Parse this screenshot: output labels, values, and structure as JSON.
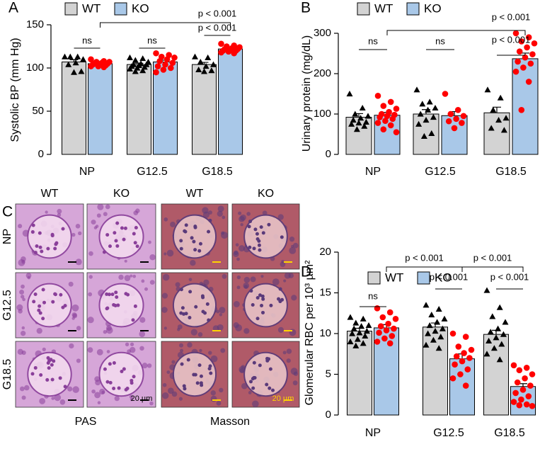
{
  "chart_data": [
    {
      "type": "bar",
      "panel_label": "A",
      "ylabel": "Systolic BP (mm Hg)",
      "categories": [
        "NP",
        "G12.5",
        "G18.5"
      ],
      "ylim": [
        0,
        150
      ],
      "yticks": [
        0,
        50,
        100,
        150
      ],
      "series": [
        {
          "name": "WT",
          "color": "#d3d3d3",
          "marker": "triangle",
          "marker_color": "#000000",
          "values": [
            107,
            104,
            104
          ],
          "errors": [
            2.5,
            1.5,
            2.5
          ],
          "points": [
            [
              113,
              113,
              113,
              110,
              106,
              104,
              96,
              95
            ],
            [
              112,
              111,
              109,
              107,
              105,
              104,
              104,
              103,
              102,
              101,
              100,
              99,
              97,
              96
            ],
            [
              113,
              112,
              107,
              104,
              102,
              98,
              97,
              96
            ]
          ]
        },
        {
          "name": "KO",
          "color": "#a9c8e8",
          "marker": "circle",
          "marker_color": "#ff0000",
          "values": [
            105,
            107,
            122
          ],
          "errors": [
            1,
            2,
            1
          ],
          "points": [
            [
              110,
              108,
              107,
              107,
              106,
              105,
              105,
              104,
              104,
              103,
              102,
              102,
              101
            ],
            [
              117,
              115,
              113,
              112,
              110,
              108,
              106,
              104,
              102,
              100,
              98,
              95
            ],
            [
              128,
              126,
              125,
              124,
              123,
              122,
              122,
              121,
              120,
              120,
              119,
              118,
              117
            ]
          ]
        }
      ],
      "annotations": [
        "ns",
        "ns",
        "p < 0.001",
        "p < 0.001"
      ]
    },
    {
      "type": "bar",
      "panel_label": "B",
      "ylabel": "Urinary protein (mg/dL)",
      "categories": [
        "NP",
        "G12.5",
        "G18.5"
      ],
      "ylim": [
        0,
        300
      ],
      "yticks": [
        0,
        100,
        200,
        300
      ],
      "series": [
        {
          "name": "WT",
          "color": "#d3d3d3",
          "marker": "triangle",
          "marker_color": "#000000",
          "values": [
            92,
            100,
            103
          ],
          "errors": [
            9,
            11,
            14
          ],
          "points": [
            [
              150,
              115,
              100,
              95,
              90,
              85,
              80,
              78,
              75,
              70,
              62
            ],
            [
              160,
              130,
              125,
              115,
              110,
              100,
              92,
              85,
              75,
              52,
              45
            ],
            [
              160,
              140,
              110,
              90,
              85,
              65,
              60
            ]
          ]
        },
        {
          "name": "KO",
          "color": "#a9c8e8",
          "marker": "circle",
          "marker_color": "#ff0000",
          "values": [
            97,
            96,
            237
          ],
          "errors": [
            7,
            10,
            14
          ],
          "points": [
            [
              145,
              130,
              120,
              113,
              105,
              100,
              98,
              95,
              92,
              88,
              83,
              78,
              72,
              62,
              55
            ],
            [
              150,
              110,
              100,
              95,
              88,
              82,
              78,
              65
            ],
            [
              300,
              290,
              280,
              275,
              265,
              255,
              248,
              240,
              230,
              225,
              215,
              205,
              180,
              110
            ]
          ]
        }
      ],
      "annotations": [
        "ns",
        "ns",
        "p < 0.001",
        "p < 0.001"
      ]
    },
    {
      "type": "bar",
      "panel_label": "D",
      "ylabel": "Glomerular RBC per 10³ µm²",
      "categories": [
        "NP",
        "G12.5",
        "G18.5"
      ],
      "ylim": [
        0,
        20
      ],
      "yticks": [
        0,
        5,
        10,
        15,
        20
      ],
      "series": [
        {
          "name": "WT",
          "color": "#d3d3d3",
          "marker": "triangle",
          "marker_color": "#000000",
          "values": [
            10.3,
            10.8,
            9.9
          ],
          "errors": [
            0.35,
            0.5,
            0.5
          ],
          "points": [
            [
              12,
              11.8,
              11.3,
              11,
              10.9,
              10.6,
              10.3,
              10.1,
              10,
              9.7,
              9.3,
              9,
              8.8,
              8.5
            ],
            [
              13.5,
              13,
              12.3,
              11.8,
              11.4,
              11,
              10.6,
              10.3,
              10,
              9.6,
              9.2,
              8.6,
              8.2
            ],
            [
              15.3,
              13.2,
              12.1,
              11.4,
              10.6,
              10.2,
              9.9,
              9.5,
              9.1,
              8.7,
              8.2,
              7.5,
              6.8
            ]
          ]
        },
        {
          "name": "KO",
          "color": "#a9c8e8",
          "marker": "circle",
          "marker_color": "#ff0000",
          "values": [
            10.7,
            6.9,
            3.5
          ],
          "errors": [
            0.4,
            0.6,
            0.35
          ],
          "points": [
            [
              13.1,
              12.6,
              12,
              11.8,
              11.2,
              10.9,
              10.6,
              10.4,
              10.1,
              9.7,
              9.4,
              9,
              8.8
            ],
            [
              10,
              9.6,
              8.4,
              8,
              7.6,
              7.2,
              7,
              6.6,
              6.2,
              5.6,
              5,
              4.5,
              3.6
            ],
            [
              6.1,
              5.8,
              5.5,
              5,
              4.5,
              4,
              3.6,
              3.1,
              2.7,
              2.3,
              1.9,
              1.6,
              1.3,
              1.2,
              1.1
            ]
          ]
        }
      ],
      "annotations": [
        "ns",
        "p < 0.001",
        "p < 0.001",
        "p < 0.001",
        "p < 0.001"
      ]
    }
  ],
  "panel_c": {
    "label": "C",
    "genotypes": [
      "WT",
      "KO",
      "WT",
      "KO"
    ],
    "stages": [
      "NP",
      "G12.5",
      "G18.5"
    ],
    "stains": [
      "PAS",
      "Masson"
    ],
    "scale_bars": [
      "20 µm",
      "20 µm"
    ]
  }
}
